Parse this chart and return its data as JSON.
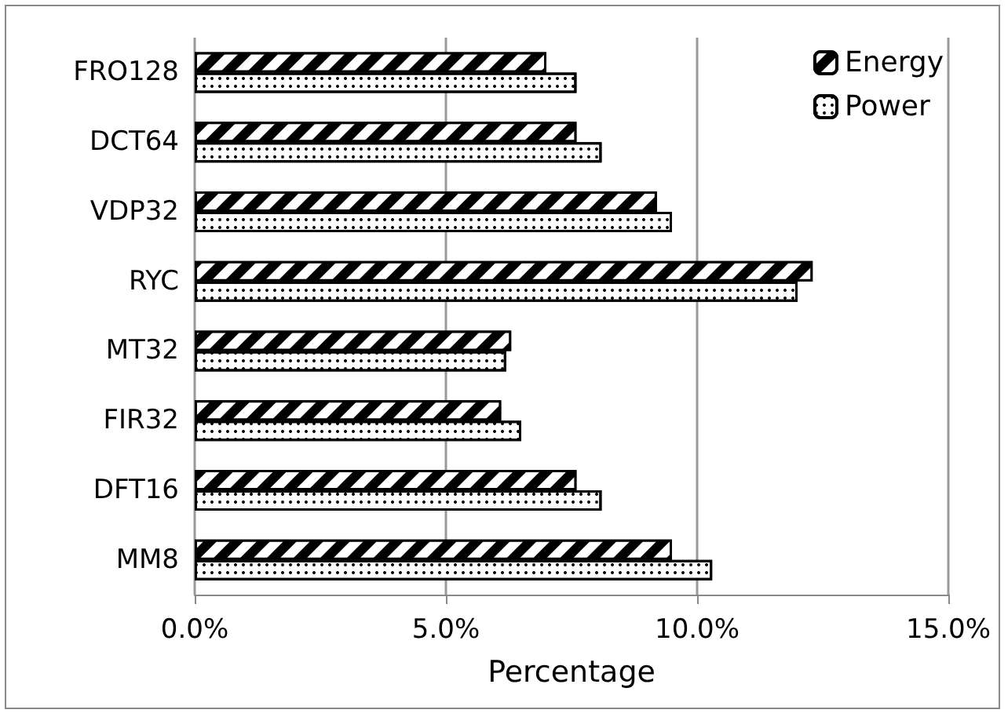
{
  "chart_data": {
    "type": "bar",
    "orientation": "horizontal",
    "xlabel": "Percentage",
    "categories": [
      "FRO128",
      "DCT64",
      "VDP32",
      "RYC",
      "MT32",
      "FIR32",
      "DFT16",
      "MM8"
    ],
    "series": [
      {
        "name": "Energy",
        "color": "#000000",
        "values": [
          7.0,
          7.6,
          9.2,
          12.3,
          6.3,
          6.1,
          7.6,
          9.5
        ]
      },
      {
        "name": "Power",
        "color": "#ffffff",
        "values": [
          7.6,
          8.1,
          9.5,
          12.0,
          6.2,
          6.5,
          8.1,
          10.3
        ]
      }
    ],
    "xlim": [
      0,
      15
    ],
    "xticks": [
      {
        "value": 0,
        "label": "0.0%"
      },
      {
        "value": 5,
        "label": "5.0%"
      },
      {
        "value": 10,
        "label": "10.0%"
      },
      {
        "value": 15,
        "label": "15.0%"
      }
    ],
    "grid": "x",
    "legend": "top right"
  }
}
